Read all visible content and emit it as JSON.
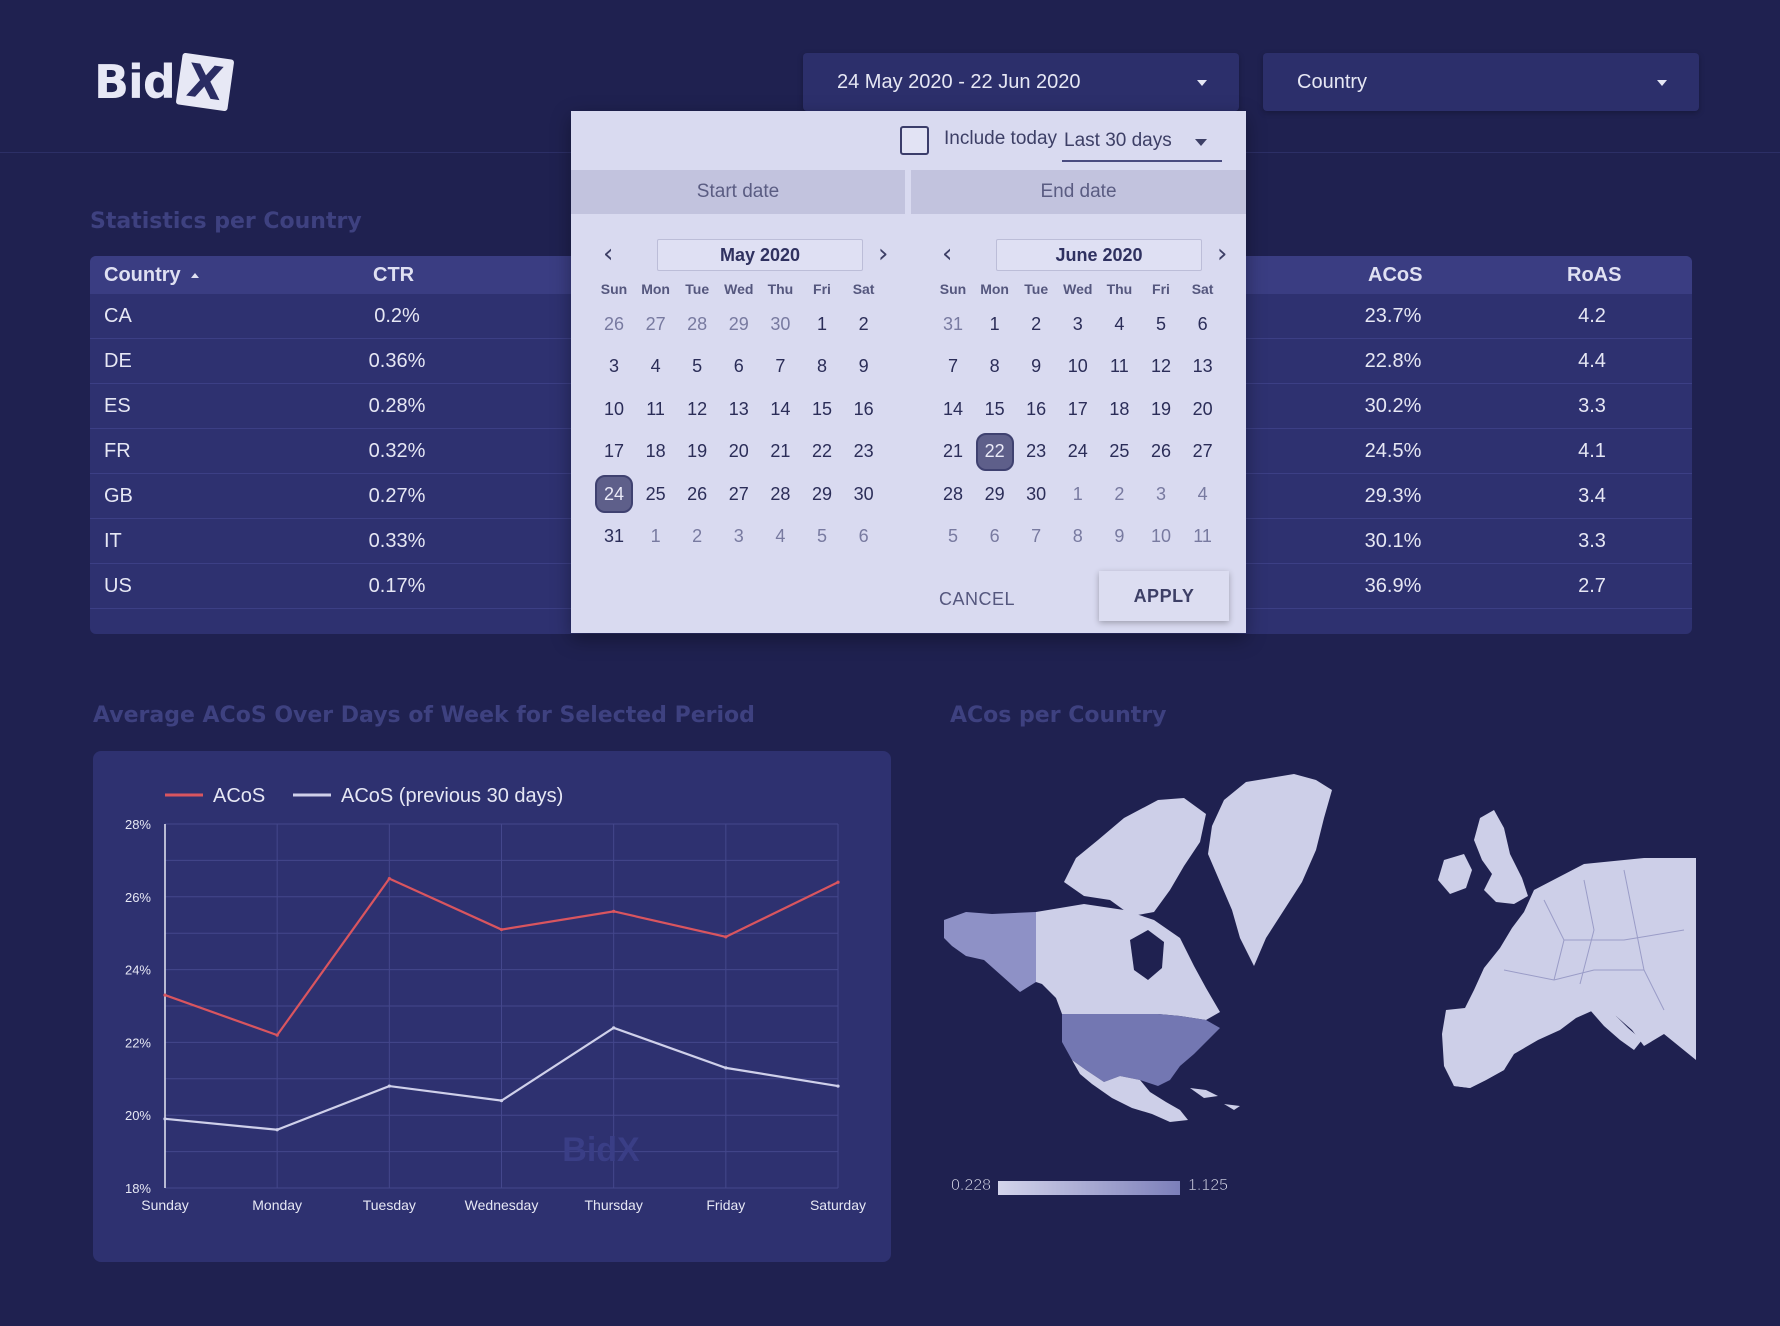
{
  "brand": {
    "logo_text": "Bid",
    "logo_mark": "X"
  },
  "header": {
    "date_range": "24 May 2020 - 22 Jun 2020",
    "country_select": "Country"
  },
  "stats_section": {
    "title": "Statistics per Country",
    "columns": [
      "Country",
      "CTR",
      "ACoS",
      "RoAS"
    ],
    "rows": [
      {
        "country": "CA",
        "ctr": "0.2%",
        "acos": "23.7%",
        "roas": "4.2"
      },
      {
        "country": "DE",
        "ctr": "0.36%",
        "acos": "22.8%",
        "roas": "4.4"
      },
      {
        "country": "ES",
        "ctr": "0.28%",
        "acos": "30.2%",
        "roas": "3.3"
      },
      {
        "country": "FR",
        "ctr": "0.32%",
        "acos": "24.5%",
        "roas": "4.1"
      },
      {
        "country": "GB",
        "ctr": "0.27%",
        "acos": "29.3%",
        "roas": "3.4"
      },
      {
        "country": "IT",
        "ctr": "0.33%",
        "acos": "30.1%",
        "roas": "3.3"
      },
      {
        "country": "US",
        "ctr": "0.17%",
        "acos": "36.9%",
        "roas": "2.7"
      }
    ]
  },
  "datepicker": {
    "include_today": "Include today",
    "include_today_checked": false,
    "range_preset": "Last 30 days",
    "start_tab": "Start date",
    "end_tab": "End date",
    "weekdays": [
      "Sun",
      "Mon",
      "Tue",
      "Wed",
      "Thu",
      "Fri",
      "Sat"
    ],
    "months": [
      {
        "title": "May 2020",
        "days": [
          [
            26,
            27,
            28,
            29,
            30,
            1,
            2
          ],
          [
            3,
            4,
            5,
            6,
            7,
            8,
            9
          ],
          [
            10,
            11,
            12,
            13,
            14,
            15,
            16
          ],
          [
            17,
            18,
            19,
            20,
            21,
            22,
            23
          ],
          [
            24,
            25,
            26,
            27,
            28,
            29,
            30
          ],
          [
            31,
            1,
            2,
            3,
            4,
            5,
            6
          ]
        ],
        "first_in_month_index": 5,
        "days_in_month": 31,
        "selected": 24
      },
      {
        "title": "June 2020",
        "days": [
          [
            31,
            1,
            2,
            3,
            4,
            5,
            6
          ],
          [
            7,
            8,
            9,
            10,
            11,
            12,
            13
          ],
          [
            14,
            15,
            16,
            17,
            18,
            19,
            20
          ],
          [
            21,
            22,
            23,
            24,
            25,
            26,
            27
          ],
          [
            28,
            29,
            30,
            1,
            2,
            3,
            4
          ],
          [
            5,
            6,
            7,
            8,
            9,
            10,
            11
          ]
        ],
        "first_in_month_index": 1,
        "days_in_month": 30,
        "selected": 22
      }
    ],
    "cancel_label": "CANCEL",
    "apply_label": "APPLY"
  },
  "acos_week_section": {
    "title": "Average ACoS Over Days of Week for Selected Period"
  },
  "acos_map_section": {
    "title": "ACos per Country"
  },
  "chart_data": {
    "type": "line",
    "categories": [
      "Sunday",
      "Monday",
      "Tuesday",
      "Wednesday",
      "Thursday",
      "Friday",
      "Saturday"
    ],
    "series": [
      {
        "name": "ACoS",
        "values": [
          23.3,
          22.2,
          26.5,
          25.1,
          25.6,
          24.9,
          26.4
        ],
        "color": "#d9555f"
      },
      {
        "name": "ACoS (previous 30 days)",
        "values": [
          19.9,
          19.6,
          20.8,
          20.4,
          22.4,
          21.3,
          20.8
        ],
        "color": "#cfd0ea"
      }
    ],
    "y_ticks": [
      "18%",
      "20%",
      "22%",
      "24%",
      "26%",
      "28%"
    ],
    "ylim": [
      18,
      28
    ],
    "grid": true,
    "legend": "top-left",
    "watermark": "BidX"
  },
  "map_legend": {
    "min": "0.228",
    "max": "1.125"
  },
  "colors": {
    "background": "#1f2150",
    "card": "#2e3170",
    "acos_line": "#d9555f",
    "previous_line": "#cfd0ea",
    "picker_bg": "#d9daf0"
  }
}
